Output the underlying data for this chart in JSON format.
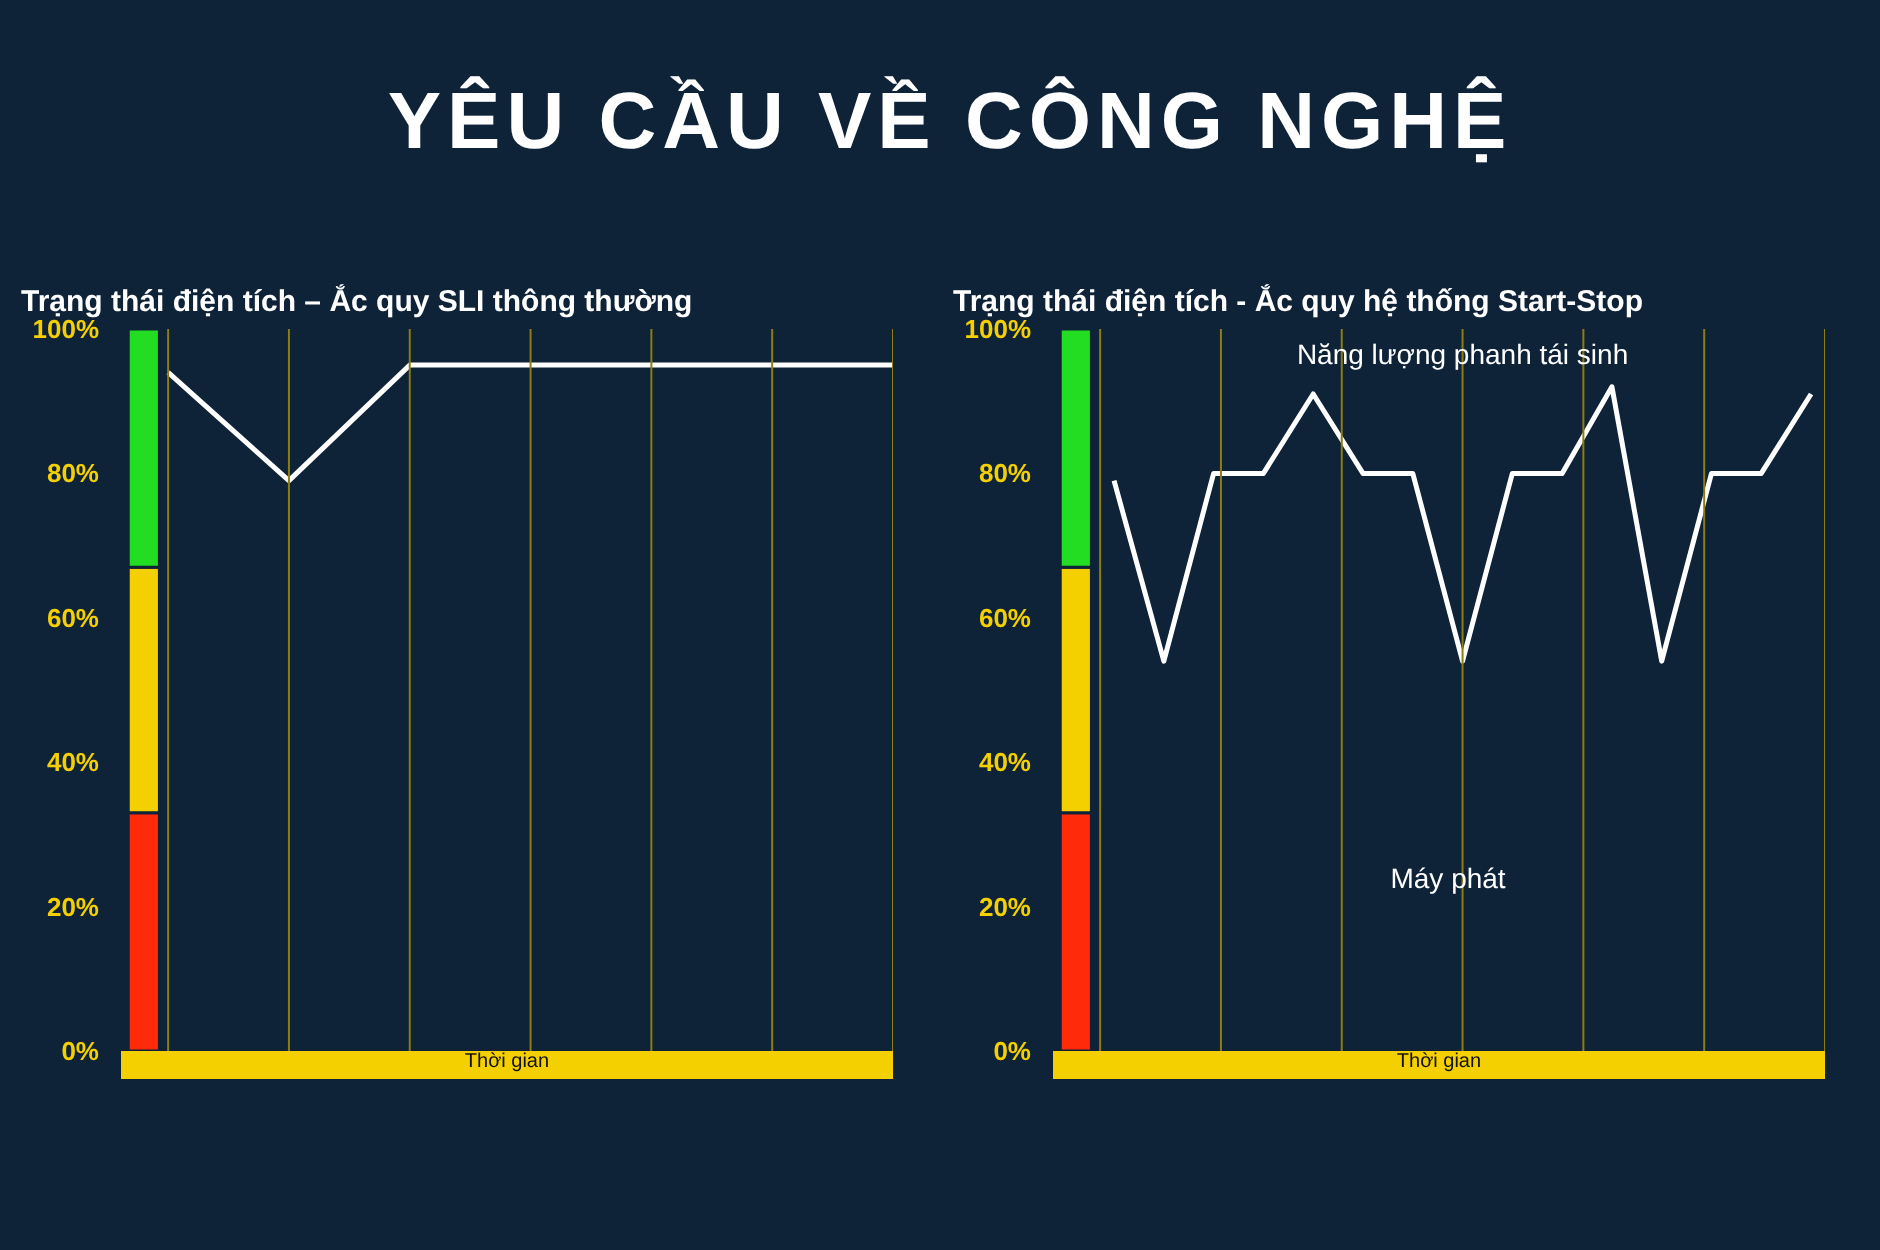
{
  "chart_data": [
    {
      "type": "line",
      "title": "Trạng thái điện tích – Ắc quy SLI thông thường",
      "xlabel": "Thời gian",
      "annotations": [
        "YÊU CẦU VỀ CÔNG NGHỆ"
      ],
      "categories": [
        null,
        null,
        null,
        null,
        null,
        null,
        null
      ],
      "series": [
        {
          "color": "#ffffff",
          "values": [
            94,
            79,
            95,
            95,
            95,
            95,
            95
          ]
        }
      ],
      "ylim": [
        0,
        100
      ],
      "yticks": [
        {
          "value": 0,
          "label": "0%"
        },
        {
          "value": 20,
          "label": "20%"
        },
        {
          "value": 40,
          "label": "40%"
        },
        {
          "value": 60,
          "label": "60%"
        },
        {
          "value": 80,
          "label": "80%"
        },
        {
          "value": 100,
          "label": "100%"
        }
      ],
      "bands": [
        {
          "axis": "y",
          "from": 0,
          "to": 33,
          "label": null,
          "color": "#ff2a0a"
        },
        {
          "axis": "y",
          "from": 33,
          "to": 67,
          "label": null,
          "color": "#f5d000"
        },
        {
          "axis": "y",
          "from": 67,
          "to": 100,
          "label": null,
          "color": "#22dd22"
        }
      ],
      "grid": "x",
      "tick_labels": "y"
    },
    {
      "type": "line",
      "title": "Trạng thái điện tích  - Ắc quy hệ thống Start-Stop",
      "xlabel": "Thời gian",
      "annotations": [
        "Năng lượng phanh tái sinh",
        "Máy phát"
      ],
      "categories": [
        null,
        null,
        null,
        null,
        null,
        null,
        null,
        null,
        null,
        null,
        null,
        null,
        null,
        null,
        null
      ],
      "series": [
        {
          "color": "#ffffff",
          "values": [
            79,
            54,
            80,
            80,
            91,
            80,
            80,
            54,
            80,
            80,
            92,
            54,
            80,
            80,
            91
          ]
        }
      ],
      "ylim": [
        0,
        100
      ],
      "yticks": [
        {
          "value": 0,
          "label": "0%"
        },
        {
          "value": 20,
          "label": "20%"
        },
        {
          "value": 40,
          "label": "40%"
        },
        {
          "value": 60,
          "label": "60%"
        },
        {
          "value": 80,
          "label": "80%"
        },
        {
          "value": 100,
          "label": "100%"
        }
      ],
      "bands": [
        {
          "axis": "y",
          "from": 0,
          "to": 33,
          "label": null,
          "color": "#ff2a0a"
        },
        {
          "axis": "y",
          "from": 33,
          "to": 67,
          "label": null,
          "color": "#f5d000"
        },
        {
          "axis": "y",
          "from": 67,
          "to": 100,
          "label": null,
          "color": "#22dd22"
        }
      ],
      "grid": "x",
      "tick_labels": "y"
    }
  ]
}
